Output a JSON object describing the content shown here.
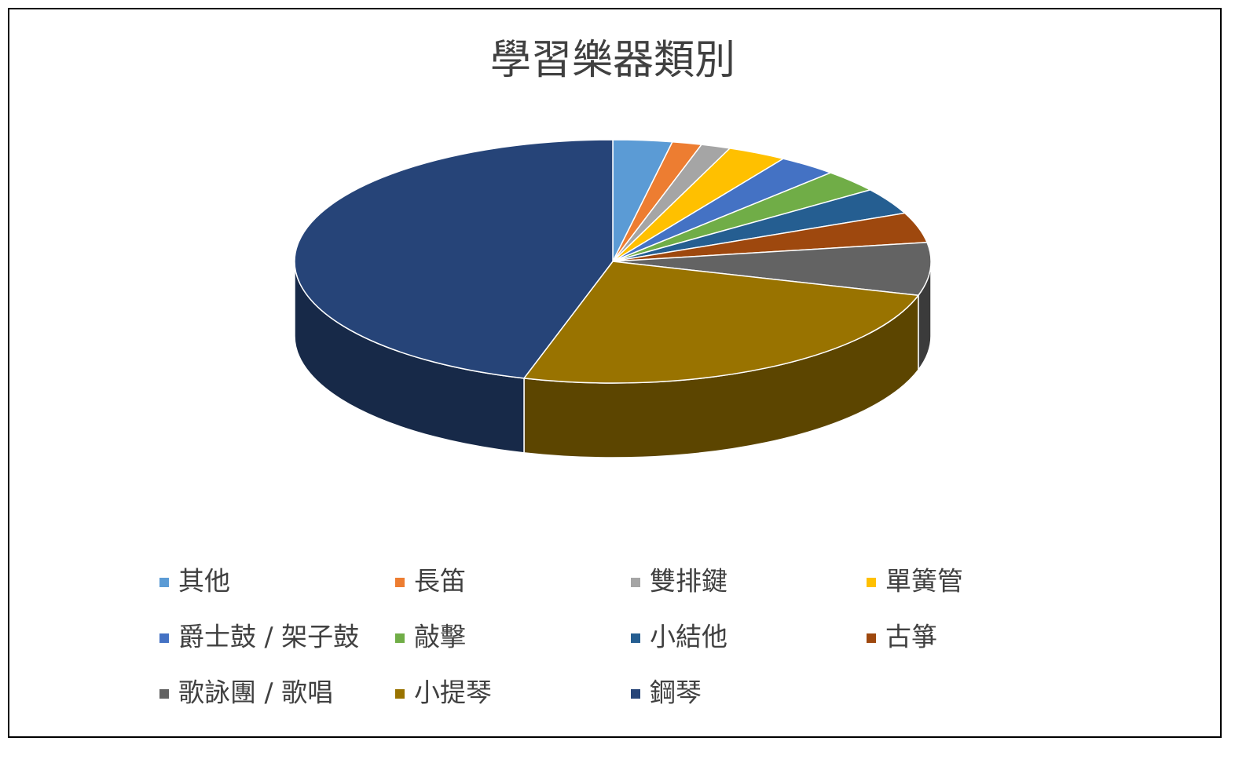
{
  "chart_data": {
    "type": "pie",
    "title": "學習樂器類別",
    "categories": [
      "其他",
      "長笛",
      "雙排鍵",
      "單簧管",
      "爵士鼓 / 架子鼓",
      "敲擊",
      "小結他",
      "古箏",
      "歌詠團 / 歌唱",
      "小提琴",
      "鋼琴"
    ],
    "values": [
      3,
      1.5,
      1.5,
      3,
      3,
      3,
      3.5,
      4,
      7,
      25,
      45.5
    ],
    "colors": [
      "#5b9bd5",
      "#ed7d31",
      "#a5a5a5",
      "#ffc000",
      "#4472c4",
      "#70ad47",
      "#255e91",
      "#9e480e",
      "#636363",
      "#997300",
      "#264478"
    ]
  }
}
